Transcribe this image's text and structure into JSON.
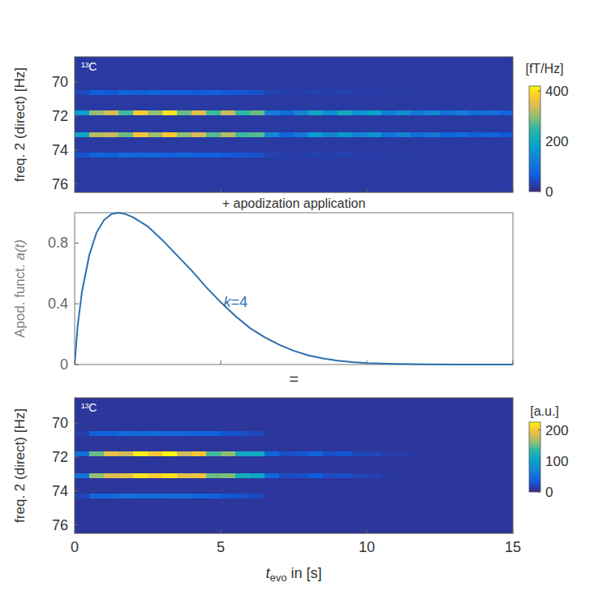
{
  "chart_data": [
    {
      "type": "heatmap",
      "label": "¹³C",
      "ylabel": "freq. 2 (direct) [Hz]",
      "xlim": [
        0,
        15
      ],
      "xticks": [
        0,
        5,
        10,
        15
      ],
      "ylim": [
        76.5,
        68.5
      ],
      "yticks": [
        70,
        72,
        74,
        76
      ],
      "tick_labels": "y",
      "x_bins": [
        0,
        0.5,
        1,
        1.5,
        2,
        2.5,
        3,
        3.5,
        4,
        4.5,
        5,
        5.5,
        6,
        6.5,
        7,
        7.5,
        8,
        8.5,
        9,
        9.5,
        10,
        10.5,
        11,
        11.5,
        12,
        12.5,
        13,
        13.5,
        14,
        14.5,
        15
      ],
      "y_bins": [
        68.5,
        70.45,
        70.75,
        71.65,
        71.95,
        72.95,
        73.25,
        74.15,
        74.45,
        76.5
      ],
      "cells": [
        [
          20,
          20,
          20,
          20,
          20,
          20,
          20,
          20,
          20,
          20,
          20,
          20,
          20,
          20,
          20,
          20,
          20,
          20,
          20,
          20,
          20,
          20,
          20,
          20,
          20,
          20,
          20,
          20,
          20,
          20
        ],
        [
          40,
          70,
          60,
          80,
          70,
          80,
          70,
          75,
          65,
          70,
          60,
          55,
          50,
          30,
          25,
          25,
          30,
          25,
          30,
          25,
          25,
          20,
          25,
          20,
          20,
          20,
          20,
          20,
          20,
          20
        ],
        [
          20,
          20,
          20,
          20,
          20,
          20,
          20,
          20,
          20,
          20,
          20,
          20,
          20,
          20,
          20,
          20,
          20,
          20,
          20,
          20,
          20,
          20,
          20,
          20,
          20,
          20,
          20,
          20,
          20,
          20
        ],
        [
          180,
          300,
          340,
          260,
          380,
          300,
          400,
          280,
          350,
          260,
          330,
          250,
          280,
          120,
          90,
          130,
          200,
          150,
          210,
          160,
          190,
          120,
          150,
          110,
          140,
          100,
          120,
          90,
          100,
          80
        ],
        [
          20,
          20,
          20,
          20,
          20,
          20,
          20,
          20,
          20,
          20,
          20,
          20,
          20,
          20,
          20,
          20,
          20,
          20,
          20,
          20,
          20,
          20,
          20,
          20,
          20,
          20,
          20,
          20,
          20,
          20
        ],
        [
          200,
          320,
          330,
          280,
          370,
          310,
          380,
          300,
          340,
          270,
          320,
          260,
          270,
          140,
          80,
          110,
          180,
          130,
          170,
          130,
          160,
          100,
          130,
          90,
          110,
          80,
          90,
          70,
          80,
          60
        ],
        [
          20,
          20,
          20,
          20,
          20,
          20,
          20,
          20,
          20,
          20,
          20,
          20,
          20,
          20,
          20,
          20,
          20,
          20,
          20,
          20,
          20,
          20,
          20,
          20,
          20,
          20,
          20,
          20,
          20,
          20
        ],
        [
          50,
          80,
          70,
          90,
          80,
          85,
          75,
          80,
          70,
          75,
          60,
          55,
          50,
          30,
          25,
          25,
          30,
          25,
          30,
          25,
          25,
          20,
          25,
          20,
          20,
          20,
          20,
          20,
          20,
          20
        ],
        [
          20,
          20,
          20,
          20,
          20,
          20,
          20,
          20,
          20,
          20,
          20,
          20,
          20,
          20,
          20,
          20,
          20,
          20,
          20,
          20,
          20,
          20,
          20,
          20,
          20,
          20,
          20,
          20,
          20,
          20
        ]
      ],
      "colorbar": {
        "label": "[fT/Hz]",
        "range": [
          0,
          420
        ],
        "ticks": [
          0,
          200,
          400
        ]
      }
    },
    {
      "type": "line",
      "title": "+ apodization application",
      "caption": "=",
      "ylabel": "Apod. funct. a(t)",
      "xlim": [
        0,
        15
      ],
      "xticks": [
        0,
        5,
        10,
        15
      ],
      "ylim": [
        0,
        1
      ],
      "yticks": [
        0,
        0.4,
        0.8
      ],
      "tick_labels": "y",
      "x": [
        0,
        0.1,
        0.25,
        0.5,
        0.75,
        1,
        1.25,
        1.5,
        1.75,
        2,
        2.5,
        3,
        3.5,
        4,
        4.5,
        5,
        5.5,
        6,
        6.5,
        7,
        7.5,
        8,
        8.5,
        9,
        9.5,
        10,
        11,
        12,
        13,
        14,
        15
      ],
      "series": [
        {
          "name": "k=4",
          "color": "#2b6fae",
          "values": [
            0,
            0.25,
            0.48,
            0.72,
            0.87,
            0.95,
            0.99,
            1.0,
            0.99,
            0.97,
            0.91,
            0.82,
            0.72,
            0.62,
            0.51,
            0.41,
            0.32,
            0.24,
            0.18,
            0.13,
            0.09,
            0.06,
            0.04,
            0.025,
            0.016,
            0.01,
            0.004,
            0.001,
            0,
            0,
            0
          ]
        }
      ]
    },
    {
      "type": "heatmap",
      "label": "¹³C",
      "ylabel": "freq. 2 (direct) [Hz]",
      "xlabel": [
        "t",
        "evo",
        " in [s]"
      ],
      "xlim": [
        0,
        15
      ],
      "xticks": [
        0,
        5,
        10,
        15
      ],
      "ylim": [
        76.5,
        68.5
      ],
      "yticks": [
        70,
        72,
        74,
        76
      ],
      "x_bins": [
        0,
        0.5,
        1,
        1.5,
        2,
        2.5,
        3,
        3.5,
        4,
        4.5,
        5,
        5.5,
        6,
        6.5,
        7,
        7.5,
        8,
        8.5,
        9,
        9.5,
        10,
        10.5,
        11,
        11.5,
        12,
        12.5,
        13,
        13.5,
        14,
        14.5,
        15
      ],
      "y_bins": [
        68.5,
        70.45,
        70.75,
        71.65,
        71.95,
        72.95,
        73.25,
        74.15,
        74.45,
        76.5
      ],
      "cells": [
        [
          8,
          8,
          8,
          8,
          8,
          8,
          8,
          8,
          8,
          8,
          8,
          8,
          8,
          8,
          8,
          8,
          8,
          8,
          8,
          8,
          8,
          8,
          8,
          8,
          8,
          8,
          8,
          8,
          8,
          8
        ],
        [
          15,
          40,
          40,
          50,
          45,
          50,
          45,
          45,
          40,
          40,
          30,
          25,
          20,
          10,
          8,
          8,
          8,
          8,
          8,
          8,
          8,
          8,
          8,
          8,
          8,
          8,
          8,
          8,
          8,
          8
        ],
        [
          8,
          8,
          8,
          8,
          8,
          8,
          8,
          8,
          8,
          8,
          8,
          8,
          8,
          8,
          8,
          8,
          8,
          8,
          8,
          8,
          8,
          8,
          8,
          8,
          8,
          8,
          8,
          8,
          8,
          8
        ],
        [
          50,
          150,
          190,
          180,
          220,
          200,
          225,
          180,
          200,
          140,
          160,
          110,
          110,
          40,
          25,
          30,
          40,
          25,
          30,
          20,
          20,
          12,
          12,
          8,
          8,
          8,
          8,
          8,
          8,
          8
        ],
        [
          8,
          8,
          8,
          8,
          8,
          8,
          8,
          8,
          8,
          8,
          8,
          8,
          8,
          8,
          8,
          8,
          8,
          8,
          8,
          8,
          8,
          8,
          8,
          8,
          8,
          8,
          8,
          8,
          8,
          8
        ],
        [
          55,
          160,
          185,
          190,
          215,
          205,
          215,
          190,
          195,
          150,
          155,
          115,
          105,
          45,
          22,
          25,
          35,
          22,
          25,
          18,
          16,
          10,
          10,
          8,
          8,
          8,
          8,
          8,
          8,
          8
        ],
        [
          8,
          8,
          8,
          8,
          8,
          8,
          8,
          8,
          8,
          8,
          8,
          8,
          8,
          8,
          8,
          8,
          8,
          8,
          8,
          8,
          8,
          8,
          8,
          8,
          8,
          8,
          8,
          8,
          8,
          8
        ],
        [
          18,
          45,
          45,
          55,
          50,
          52,
          48,
          48,
          42,
          40,
          32,
          26,
          20,
          10,
          8,
          8,
          8,
          8,
          8,
          8,
          8,
          8,
          8,
          8,
          8,
          8,
          8,
          8,
          8,
          8
        ],
        [
          8,
          8,
          8,
          8,
          8,
          8,
          8,
          8,
          8,
          8,
          8,
          8,
          8,
          8,
          8,
          8,
          8,
          8,
          8,
          8,
          8,
          8,
          8,
          8,
          8,
          8,
          8,
          8,
          8,
          8
        ]
      ],
      "colorbar": {
        "label": "[a.u.]",
        "range": [
          0,
          225
        ],
        "ticks": [
          0,
          100,
          200
        ]
      }
    }
  ]
}
